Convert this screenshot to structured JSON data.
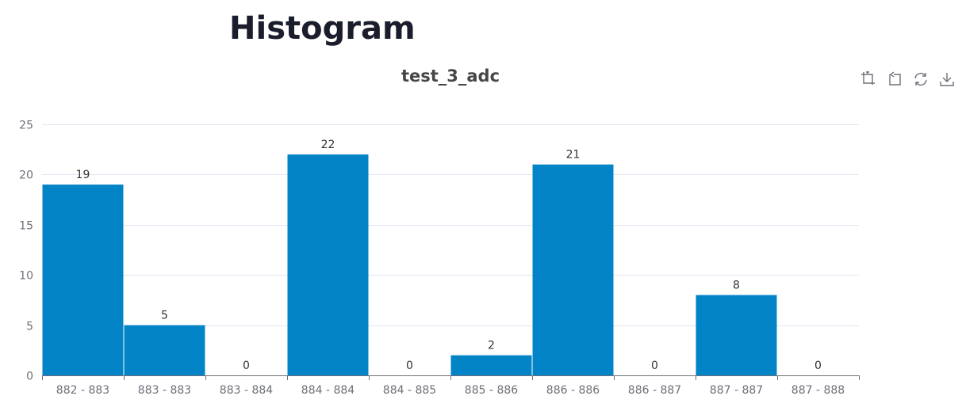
{
  "page": {
    "title": "Histogram"
  },
  "toolbox": {
    "icons": [
      "zoom-select-icon",
      "zoom-reset-icon",
      "restore-icon",
      "save-image-icon"
    ]
  },
  "colors": {
    "bar": "#0384c7",
    "axis": "#6e7079",
    "grid": "#e0e6f1",
    "label": "#333333",
    "tick_label": "#6e7079"
  },
  "chart_data": {
    "type": "bar",
    "title": "test_3_adc",
    "categories": [
      "882 - 883",
      "883 - 883",
      "883 - 884",
      "884 - 884",
      "884 - 885",
      "885 - 886",
      "886 - 886",
      "886 - 887",
      "887 - 887",
      "887 - 888"
    ],
    "values": [
      19,
      5,
      0,
      22,
      0,
      2,
      21,
      0,
      8,
      0
    ],
    "ylim": [
      0,
      25
    ],
    "yticks": [
      0,
      5,
      10,
      15,
      20,
      25
    ],
    "grid": true,
    "show_data_labels": true
  }
}
